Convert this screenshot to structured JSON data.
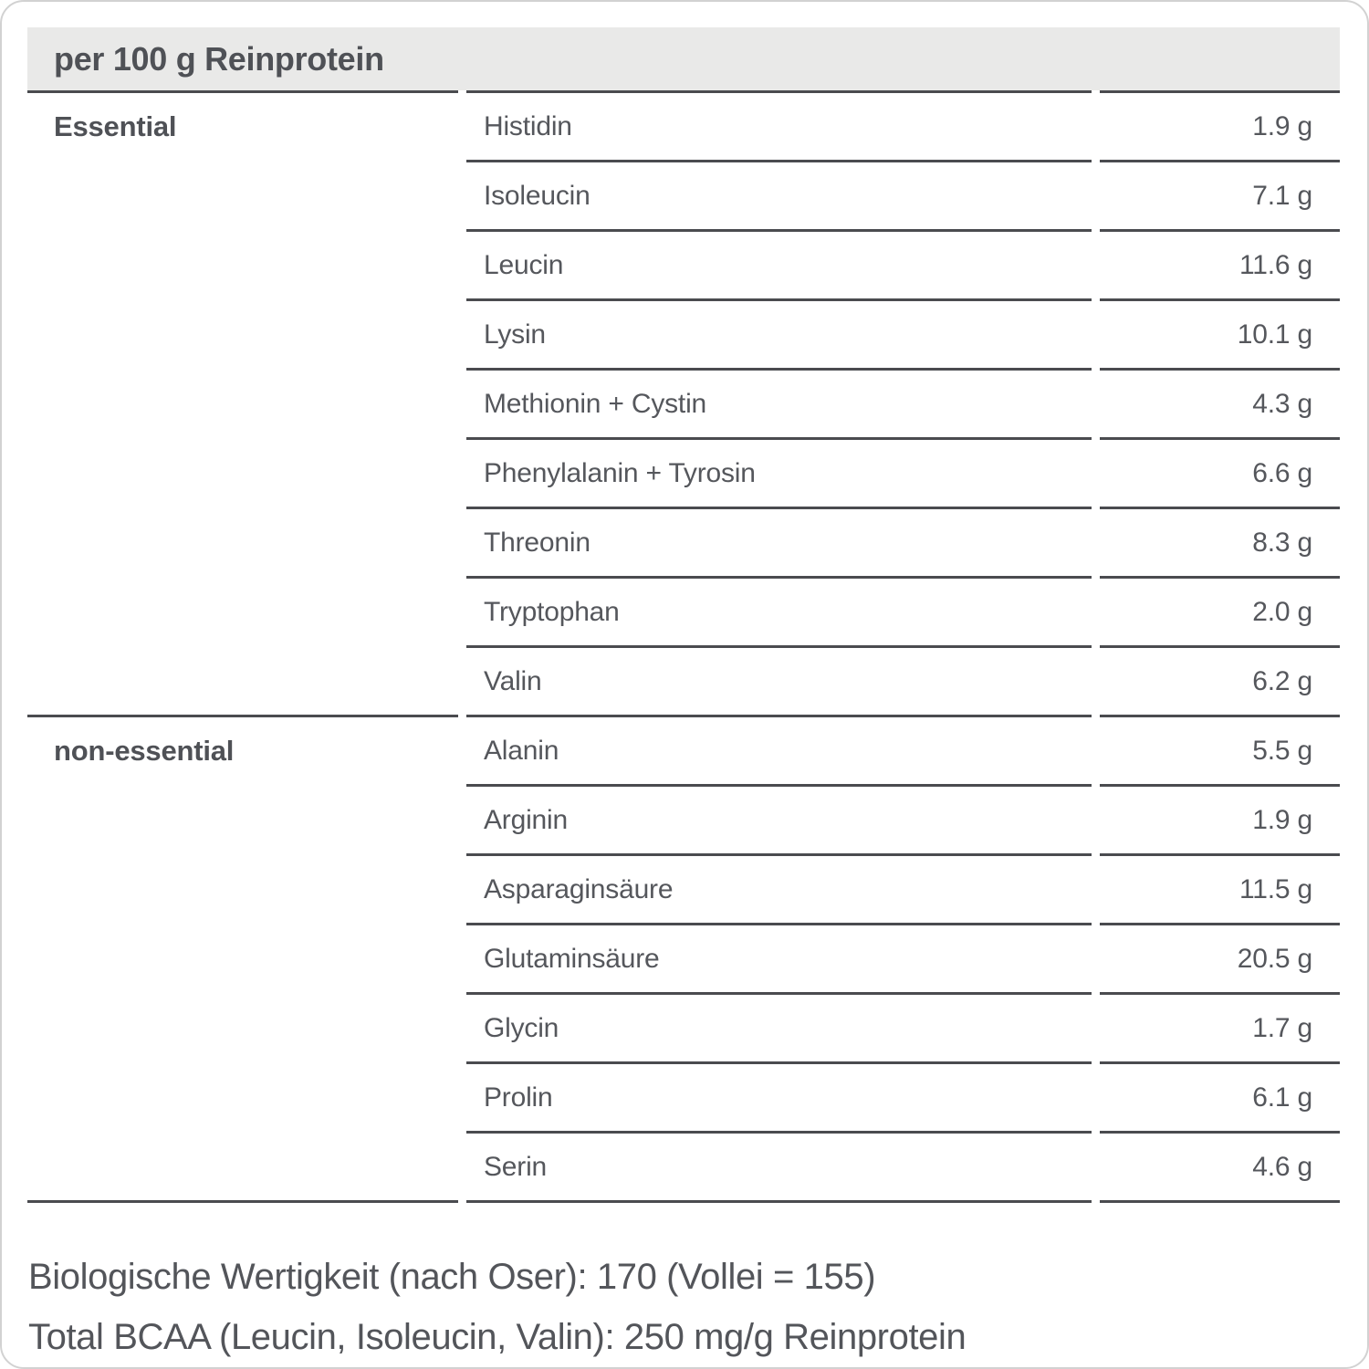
{
  "title": "per 100 g Reinprotein",
  "table": {
    "sections": [
      {
        "category": "Essential",
        "rows": [
          {
            "name": "Histidin",
            "value": "1.9 g"
          },
          {
            "name": "Isoleucin",
            "value": "7.1 g"
          },
          {
            "name": "Leucin",
            "value": "11.6 g"
          },
          {
            "name": "Lysin",
            "value": "10.1 g"
          },
          {
            "name": "Methionin + Cystin",
            "value": "4.3 g"
          },
          {
            "name": "Phenylalanin + Tyrosin",
            "value": "6.6 g"
          },
          {
            "name": "Threonin",
            "value": "8.3 g"
          },
          {
            "name": "Tryptophan",
            "value": "2.0 g"
          },
          {
            "name": "Valin",
            "value": "6.2 g"
          }
        ]
      },
      {
        "category": "non-essential",
        "rows": [
          {
            "name": "Alanin",
            "value": "5.5 g"
          },
          {
            "name": "Arginin",
            "value": "1.9 g"
          },
          {
            "name": "Asparaginsäure",
            "value": "11.5 g"
          },
          {
            "name": "Glutaminsäure",
            "value": "20.5 g"
          },
          {
            "name": "Glycin",
            "value": "1.7 g"
          },
          {
            "name": "Prolin",
            "value": "6.1 g"
          },
          {
            "name": "Serin",
            "value": "4.6 g"
          }
        ]
      }
    ]
  },
  "notes": {
    "line1": "Biologische Wertigkeit (nach Oser): 170 (Vollei = 155)",
    "line2": "Total BCAA (Leucin, Isoleucin, Valin): 250 mg/g Reinprotein"
  },
  "colors": {
    "band_background": "#e9e9e8",
    "rule_line": "#4a4b4f",
    "text": "#55575c",
    "card_border": "#d2d2d2"
  }
}
